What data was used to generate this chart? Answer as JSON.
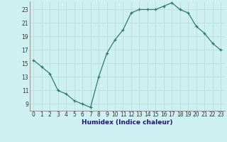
{
  "x": [
    0,
    1,
    2,
    3,
    4,
    5,
    6,
    7,
    8,
    9,
    10,
    11,
    12,
    13,
    14,
    15,
    16,
    17,
    18,
    19,
    20,
    21,
    22,
    23
  ],
  "y": [
    15.5,
    14.5,
    13.5,
    11.0,
    10.5,
    9.5,
    9.0,
    8.5,
    13.0,
    16.5,
    18.5,
    20.0,
    22.5,
    23.0,
    23.0,
    23.0,
    23.5,
    24.0,
    23.0,
    22.5,
    20.5,
    19.5,
    18.0,
    17.0
  ],
  "bg_color": "#cff0f0",
  "line_color": "#2d7a6e",
  "marker": "+",
  "xlabel": "Humidex (Indice chaleur)",
  "xlim_min": -0.5,
  "xlim_max": 23.5,
  "ylim_min": 8.0,
  "ylim_max": 24.2,
  "yticks": [
    9,
    11,
    13,
    15,
    17,
    19,
    21,
    23
  ],
  "xticks": [
    0,
    1,
    2,
    3,
    4,
    5,
    6,
    7,
    8,
    9,
    10,
    11,
    12,
    13,
    14,
    15,
    16,
    17,
    18,
    19,
    20,
    21,
    22,
    23
  ],
  "grid_color": "#b8dede",
  "xlabel_color": "#1a1a6e",
  "xlabel_fontsize": 6.5,
  "tick_fontsize": 5.5
}
